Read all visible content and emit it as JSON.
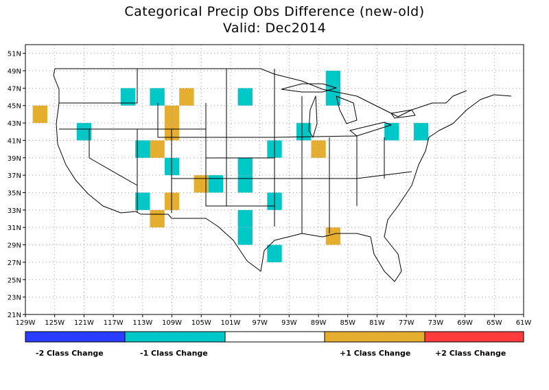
{
  "title_line1": "Categorical Precip Obs Difference (new-old)",
  "title_line2": "Valid: Dec2014",
  "lat_labels": [
    "21N",
    "23N",
    "25N",
    "27N",
    "29N",
    "31N",
    "33N",
    "35N",
    "37N",
    "39N",
    "41N",
    "43N",
    "45N",
    "47N",
    "49N",
    "51N"
  ],
  "lon_labels": [
    "129W",
    "125W",
    "121W",
    "117W",
    "113W",
    "109W",
    "105W",
    "101W",
    "97W",
    "93W",
    "89W",
    "85W",
    "81W",
    "77W",
    "73W",
    "69W",
    "65W",
    "61W"
  ],
  "colors": {
    "minus2": "#2a3cff",
    "minus1": "#00c8c8",
    "zero": "#ffffff",
    "plus1": "#e6ae2e",
    "plus2": "#ff3c3c"
  },
  "legend": {
    "minus2": "-2 Class Change",
    "minus1": "-1 Class Change",
    "plus1": "+1 Class Change",
    "plus2": "+2 Class Change"
  },
  "cells_minus1": [
    [
      -115,
      46
    ],
    [
      -111,
      46
    ],
    [
      -99,
      46
    ],
    [
      -87,
      48
    ],
    [
      -87,
      46
    ],
    [
      -121,
      42
    ],
    [
      -91,
      42
    ],
    [
      -79,
      42
    ],
    [
      -75,
      42
    ],
    [
      -113,
      40
    ],
    [
      -95,
      40
    ],
    [
      -109,
      38
    ],
    [
      -99,
      38
    ],
    [
      -99,
      36
    ],
    [
      -103,
      36
    ],
    [
      -113,
      34
    ],
    [
      -95,
      34
    ],
    [
      -99,
      32
    ],
    [
      -99,
      30
    ],
    [
      -95,
      28
    ]
  ],
  "cells_plus1": [
    [
      -127,
      44
    ],
    [
      -107,
      46
    ],
    [
      -109,
      44
    ],
    [
      -109,
      42
    ],
    [
      -111,
      40
    ],
    [
      -89,
      40
    ],
    [
      -105,
      36
    ],
    [
      -109,
      34
    ],
    [
      -111,
      32
    ],
    [
      -87,
      30
    ]
  ]
}
